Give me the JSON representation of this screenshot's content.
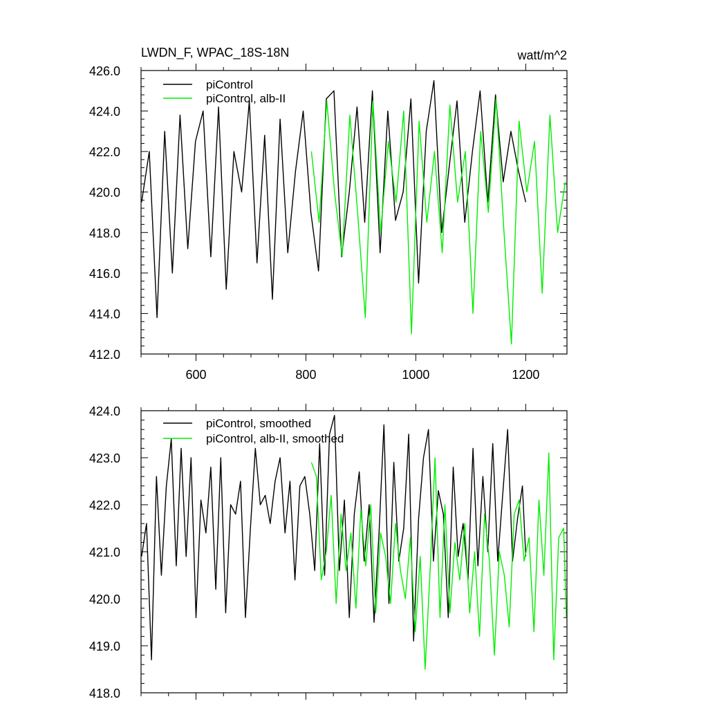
{
  "header": {
    "title": "LWDN_F, WPAC_18S-18N",
    "units": "watt/m^2"
  },
  "colors": {
    "series1": "#000000",
    "series2": "#00ee00",
    "axis": "#000000"
  },
  "chart_data": [
    {
      "type": "line",
      "title": "LWDN_F, WPAC_18S-18N",
      "units": "watt/m^2",
      "xlim": [
        500,
        1275
      ],
      "ylim": [
        412,
        426
      ],
      "xticks": [
        600,
        800,
        1000,
        1200
      ],
      "xtick_labels": [
        "600",
        "800",
        "1000",
        "1200"
      ],
      "yticks": [
        412,
        414,
        416,
        418,
        420,
        422,
        424,
        426
      ],
      "ytick_labels": [
        "412.0",
        "414.0",
        "416.0",
        "418.0",
        "420.0",
        "422.0",
        "424.0",
        "426.0"
      ],
      "legend": "top-left",
      "series": [
        {
          "name": "piControl",
          "color": "#000000",
          "x": [
            501,
            515,
            529,
            543,
            557,
            571,
            585,
            599,
            613,
            627,
            641,
            655,
            669,
            683,
            697,
            711,
            725,
            739,
            753,
            767,
            781,
            795,
            809,
            823,
            837,
            851,
            865,
            879,
            893,
            907,
            921,
            935,
            949,
            963,
            977,
            991,
            1005,
            1019,
            1033,
            1047,
            1061,
            1075,
            1089,
            1103,
            1117,
            1131,
            1145,
            1159,
            1173,
            1187,
            1200
          ],
          "y": [
            419.5,
            422.0,
            413.8,
            423.0,
            416.0,
            423.8,
            417.2,
            422.5,
            424.0,
            416.8,
            424.2,
            415.2,
            422.0,
            420.0,
            424.5,
            416.5,
            422.8,
            414.7,
            423.6,
            417.0,
            421.0,
            424.0,
            419.0,
            416.1,
            424.6,
            425.0,
            416.8,
            420.0,
            424.2,
            418.5,
            425.0,
            417.0,
            424.0,
            418.6,
            420.0,
            424.6,
            415.5,
            423.0,
            425.5,
            418.0,
            421.3,
            424.5,
            418.5,
            422.0,
            425.0,
            419.5,
            424.8,
            420.5,
            423.0,
            421.0,
            419.5
          ]
        },
        {
          "name": "piControl, alb-II",
          "color": "#00ee00",
          "x": [
            810,
            824,
            838,
            852,
            866,
            880,
            894,
            908,
            922,
            936,
            950,
            964,
            978,
            992,
            1006,
            1020,
            1034,
            1048,
            1062,
            1076,
            1090,
            1104,
            1118,
            1132,
            1146,
            1160,
            1174,
            1188,
            1202,
            1216,
            1230,
            1244,
            1258,
            1272
          ],
          "y": [
            422.0,
            418.5,
            424.5,
            420.0,
            416.8,
            423.8,
            419.0,
            413.8,
            424.5,
            418.0,
            422.5,
            419.5,
            424.0,
            413.0,
            423.5,
            418.5,
            422.0,
            417.0,
            424.3,
            419.5,
            422.0,
            414.0,
            423.0,
            419.0,
            424.6,
            418.2,
            412.5,
            423.5,
            420.0,
            422.5,
            415.0,
            423.8,
            418.0,
            420.5
          ]
        }
      ]
    },
    {
      "type": "line",
      "xlim": [
        500,
        1275
      ],
      "ylim": [
        418,
        424
      ],
      "xticks": [
        600,
        800,
        1000,
        1200
      ],
      "yticks": [
        418,
        419,
        420,
        421,
        422,
        423,
        424
      ],
      "ytick_labels": [
        "418.0",
        "419.0",
        "420.0",
        "421.0",
        "422.0",
        "423.0",
        "424.0"
      ],
      "legend": "top-left",
      "series": [
        {
          "name": "piControl, smoothed",
          "color": "#000000",
          "x": [
            501,
            510,
            519,
            528,
            537,
            546,
            555,
            564,
            573,
            582,
            591,
            600,
            609,
            618,
            627,
            636,
            645,
            654,
            663,
            672,
            681,
            690,
            699,
            708,
            717,
            726,
            735,
            744,
            753,
            762,
            771,
            780,
            789,
            798,
            807,
            816,
            825,
            834,
            843,
            852,
            861,
            870,
            879,
            888,
            897,
            906,
            915,
            924,
            933,
            942,
            951,
            960,
            969,
            978,
            987,
            996,
            1005,
            1014,
            1023,
            1032,
            1041,
            1050,
            1059,
            1068,
            1077,
            1086,
            1095,
            1104,
            1113,
            1122,
            1131,
            1140,
            1149,
            1158,
            1167,
            1176,
            1185,
            1194,
            1200
          ],
          "y": [
            420.9,
            421.6,
            418.7,
            422.6,
            420.5,
            422.4,
            423.4,
            420.7,
            423.2,
            420.9,
            423.0,
            419.6,
            422.1,
            421.4,
            422.8,
            420.2,
            423.0,
            419.7,
            422.0,
            421.8,
            422.5,
            419.6,
            421.5,
            423.2,
            422.0,
            422.2,
            421.6,
            422.5,
            423.0,
            421.4,
            422.5,
            420.4,
            422.4,
            422.6,
            421.8,
            420.6,
            423.3,
            420.5,
            423.5,
            423.9,
            420.6,
            422.1,
            419.6,
            421.8,
            422.7,
            420.8,
            422.0,
            419.5,
            421.4,
            423.7,
            419.9,
            422.9,
            420.8,
            421.5,
            423.5,
            419.1,
            421.7,
            423.0,
            423.6,
            420.8,
            422.3,
            421.8,
            419.6,
            422.8,
            420.9,
            421.6,
            420.4,
            423.2,
            420.7,
            422.6,
            421.0,
            423.3,
            420.8,
            422.2,
            423.6,
            420.8,
            421.7,
            422.4,
            420.9
          ]
        },
        {
          "name": "piControl, alb-II, smoothed",
          "color": "#00ee00",
          "x": [
            810,
            819,
            828,
            837,
            846,
            855,
            864,
            873,
            882,
            891,
            900,
            909,
            918,
            927,
            936,
            945,
            954,
            963,
            972,
            981,
            990,
            999,
            1008,
            1017,
            1026,
            1035,
            1044,
            1053,
            1062,
            1071,
            1080,
            1089,
            1098,
            1107,
            1116,
            1125,
            1134,
            1143,
            1152,
            1161,
            1170,
            1179,
            1188,
            1197,
            1206,
            1215,
            1224,
            1233,
            1242,
            1251,
            1260,
            1269,
            1274
          ],
          "y": [
            422.9,
            422.6,
            420.4,
            421.0,
            422.2,
            419.9,
            421.8,
            420.6,
            421.4,
            419.8,
            421.9,
            420.7,
            422.0,
            419.7,
            421.4,
            420.9,
            419.9,
            421.6,
            420.6,
            420.0,
            421.3,
            419.3,
            420.9,
            418.5,
            420.6,
            423.0,
            419.6,
            422.0,
            419.7,
            421.2,
            420.4,
            421.6,
            419.7,
            421.0,
            419.2,
            421.8,
            420.8,
            418.8,
            421.0,
            420.5,
            419.4,
            421.8,
            422.1,
            420.8,
            421.3,
            419.3,
            422.1,
            420.5,
            423.1,
            418.7,
            421.3,
            421.5,
            419.6
          ]
        }
      ]
    }
  ]
}
